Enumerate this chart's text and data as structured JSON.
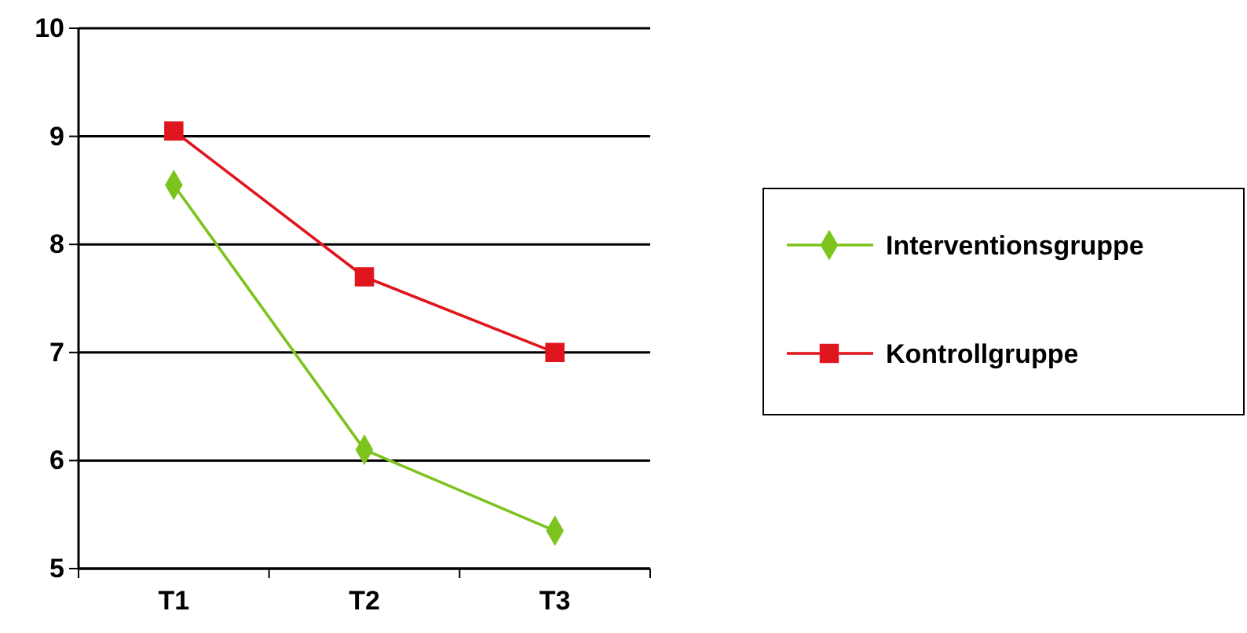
{
  "chart_data": {
    "type": "line",
    "categories": [
      "T1",
      "T2",
      "T3"
    ],
    "series": [
      {
        "name": "Interventionsgruppe",
        "color": "#7dc31e",
        "values": [
          8.55,
          6.1,
          5.35
        ],
        "marker": "diamond"
      },
      {
        "name": "Kontrollgruppe",
        "color": "#e0161e",
        "values": [
          9.05,
          7.7,
          7.0
        ],
        "marker": "square"
      }
    ],
    "ylim": [
      5,
      10
    ],
    "yticks": [
      5,
      6,
      7,
      8,
      9,
      10
    ],
    "grid": "y",
    "legend": "right",
    "line_style": "solid"
  }
}
